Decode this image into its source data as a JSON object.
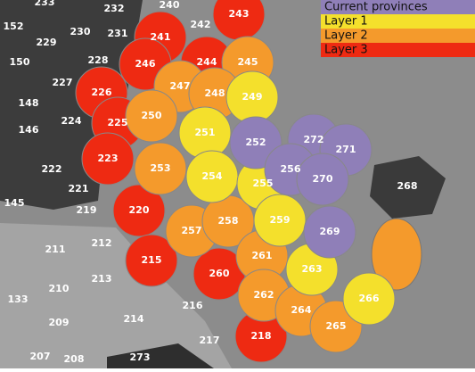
{
  "legend": [
    {
      "label": "Current provinces",
      "color": "#8f7fb8"
    },
    {
      "label": "Layer 1",
      "color": "#f4e02c"
    },
    {
      "label": "Layer 2",
      "color": "#f49a2c"
    },
    {
      "label": "Layer 3",
      "color": "#ee2a12"
    }
  ],
  "provinces": [
    {
      "label": "233",
      "layer": null
    },
    {
      "label": "232",
      "layer": null
    },
    {
      "label": "240",
      "layer": null
    },
    {
      "label": "242",
      "layer": null
    },
    {
      "label": "152",
      "layer": null
    },
    {
      "label": "229",
      "layer": null
    },
    {
      "label": "230",
      "layer": null
    },
    {
      "label": "231",
      "layer": null
    },
    {
      "label": "150",
      "layer": null
    },
    {
      "label": "228",
      "layer": null
    },
    {
      "label": "227",
      "layer": null
    },
    {
      "label": "148",
      "layer": null
    },
    {
      "label": "224",
      "layer": null
    },
    {
      "label": "146",
      "layer": null
    },
    {
      "label": "222",
      "layer": null
    },
    {
      "label": "221",
      "layer": null
    },
    {
      "label": "145",
      "layer": null
    },
    {
      "label": "219",
      "layer": null
    },
    {
      "label": "211",
      "layer": null
    },
    {
      "label": "212",
      "layer": null
    },
    {
      "label": "210",
      "layer": null
    },
    {
      "label": "213",
      "layer": null
    },
    {
      "label": "133",
      "layer": null
    },
    {
      "label": "209",
      "layer": null
    },
    {
      "label": "214",
      "layer": null
    },
    {
      "label": "216",
      "layer": null
    },
    {
      "label": "217",
      "layer": null
    },
    {
      "label": "207",
      "layer": null
    },
    {
      "label": "208",
      "layer": null
    },
    {
      "label": "273",
      "layer": null
    },
    {
      "label": "268",
      "layer": null
    },
    {
      "label": "243",
      "layer": 3
    },
    {
      "label": "241",
      "layer": 3
    },
    {
      "label": "246",
      "layer": 3
    },
    {
      "label": "244",
      "layer": 3
    },
    {
      "label": "226",
      "layer": 3
    },
    {
      "label": "225",
      "layer": 3
    },
    {
      "label": "223",
      "layer": 3
    },
    {
      "label": "220",
      "layer": 3
    },
    {
      "label": "215",
      "layer": 3
    },
    {
      "label": "260",
      "layer": 3
    },
    {
      "label": "218",
      "layer": 3
    },
    {
      "label": "245",
      "layer": 2
    },
    {
      "label": "247",
      "layer": 2
    },
    {
      "label": "248",
      "layer": 2
    },
    {
      "label": "250",
      "layer": 2
    },
    {
      "label": "253",
      "layer": 2
    },
    {
      "label": "257",
      "layer": 2
    },
    {
      "label": "258",
      "layer": 2
    },
    {
      "label": "261",
      "layer": 2
    },
    {
      "label": "262",
      "layer": 2
    },
    {
      "label": "264",
      "layer": 2
    },
    {
      "label": "265",
      "layer": 2
    },
    {
      "label": "249",
      "layer": 1
    },
    {
      "label": "251",
      "layer": 1
    },
    {
      "label": "254",
      "layer": 1
    },
    {
      "label": "255",
      "layer": 1
    },
    {
      "label": "259",
      "layer": 1
    },
    {
      "label": "263",
      "layer": 1
    },
    {
      "label": "266",
      "layer": 1
    },
    {
      "label": "252",
      "layer": 0
    },
    {
      "label": "272",
      "layer": 0
    },
    {
      "label": "271",
      "layer": 0
    },
    {
      "label": "256",
      "layer": 0
    },
    {
      "label": "270",
      "layer": 0
    },
    {
      "label": "269",
      "layer": 0
    }
  ]
}
